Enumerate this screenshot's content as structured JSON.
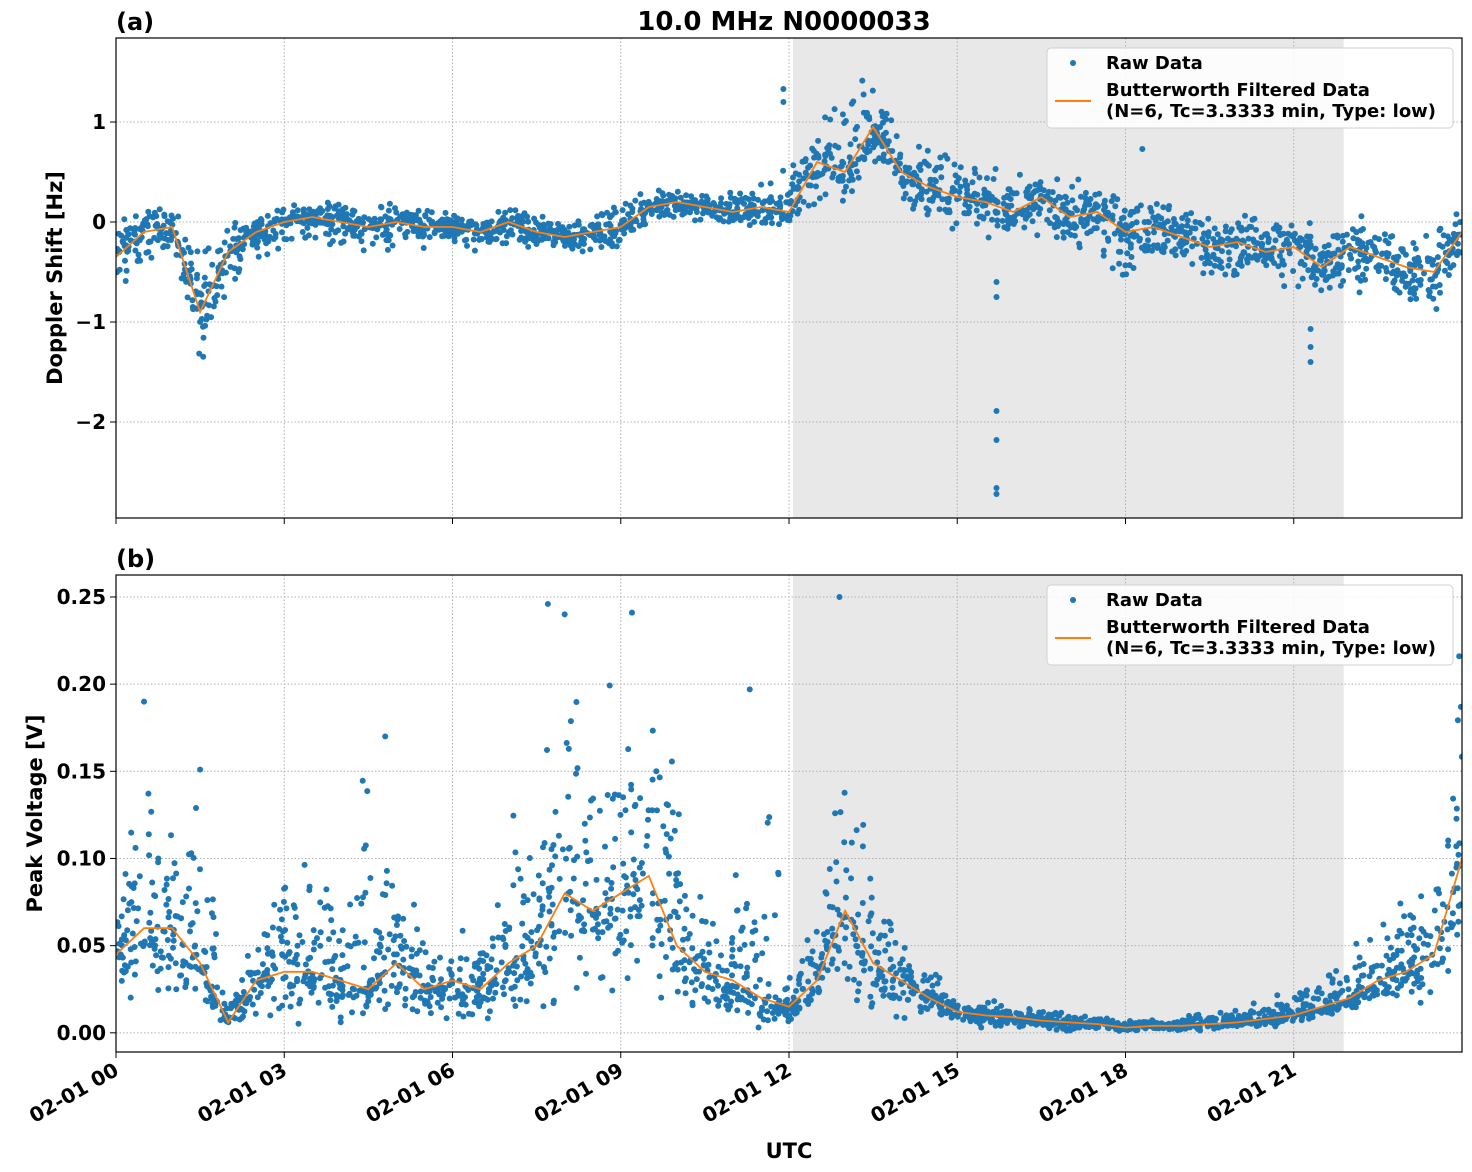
{
  "figure_title": "10.0 MHz N0000033",
  "xlabel": "UTC",
  "x_ticks": [
    "02-01 00",
    "02-01 03",
    "02-01 06",
    "02-01 09",
    "02-01 12",
    "02-01 15",
    "02-01 18",
    "02-01 21"
  ],
  "x_tick_hours": [
    0,
    3,
    6,
    9,
    12,
    15,
    18,
    21
  ],
  "xlim_hours": [
    0,
    24
  ],
  "shaded_interval_hours": [
    12.07,
    21.89
  ],
  "colors": {
    "raw": "#1f77b4",
    "filtered": "#ff7f0e",
    "shade": "#e8e8e8"
  },
  "legend": {
    "raw": "Raw Data",
    "filtered_line1": "Butterworth Filtered Data",
    "filtered_line2": "(N=6, Tc=3.3333 min, Type: low)",
    "placement": "top-right"
  },
  "chart_data": [
    {
      "type": "scatter",
      "panel_label": "(a)",
      "ylabel": "Doppler Shift [Hz]",
      "ylim": [
        -2.96,
        1.84
      ],
      "y_ticks": [
        1,
        0,
        -1,
        -2
      ],
      "y_tick_labels": [
        "1",
        "0",
        "−1",
        "−2"
      ],
      "grid": true,
      "x_hours": [
        0,
        0.5,
        1,
        1.5,
        2,
        2.5,
        3,
        3.5,
        4,
        4.5,
        5,
        5.5,
        6,
        6.5,
        7,
        7.5,
        8,
        8.5,
        9,
        9.5,
        10,
        10.5,
        11,
        11.5,
        12,
        12.5,
        13,
        13.5,
        14,
        14.5,
        15,
        15.5,
        16,
        16.5,
        17,
        17.5,
        18,
        18.5,
        19,
        19.5,
        20,
        20.5,
        21,
        21.5,
        22,
        22.5,
        23,
        23.5,
        24
      ],
      "filtered": [
        -0.35,
        -0.1,
        -0.05,
        -0.9,
        -0.3,
        -0.1,
        0,
        0.05,
        0,
        -0.05,
        0,
        -0.05,
        -0.05,
        -0.1,
        0,
        -0.1,
        -0.15,
        -0.1,
        -0.05,
        0.15,
        0.2,
        0.15,
        0.1,
        0.15,
        0.1,
        0.6,
        0.5,
        0.95,
        0.5,
        0.35,
        0.25,
        0.2,
        0.1,
        0.25,
        0.05,
        0.1,
        -0.1,
        -0.05,
        -0.15,
        -0.25,
        -0.2,
        -0.3,
        -0.25,
        -0.45,
        -0.25,
        -0.35,
        -0.45,
        -0.5,
        -0.1
      ],
      "raw_min": [
        -0.8,
        -0.5,
        -0.3,
        -1.45,
        -0.8,
        -0.4,
        -0.25,
        -0.2,
        -0.3,
        -0.35,
        -0.25,
        -0.3,
        -0.25,
        -0.35,
        -0.25,
        -0.3,
        -0.35,
        -0.35,
        -0.3,
        -0.05,
        0.0,
        -0.05,
        -0.1,
        -0.05,
        -0.1,
        0.1,
        0.1,
        0.5,
        0.1,
        0.0,
        -0.1,
        -0.15,
        -0.3,
        -0.15,
        -0.35,
        -0.4,
        -0.55,
        -0.45,
        -0.5,
        -0.65,
        -0.6,
        -0.6,
        -0.7,
        -0.85,
        -0.7,
        -0.8,
        -0.95,
        -1.05,
        -0.6
      ],
      "raw_max": [
        0.1,
        0.15,
        0.15,
        -0.2,
        0.05,
        0.1,
        0.2,
        0.2,
        0.2,
        0.15,
        0.2,
        0.15,
        0.15,
        0.1,
        0.2,
        0.1,
        0.05,
        0.1,
        0.2,
        0.35,
        0.35,
        0.3,
        0.3,
        0.4,
        0.6,
        1.0,
        1.3,
        1.6,
        1.2,
        0.9,
        0.7,
        0.6,
        0.5,
        0.6,
        0.45,
        0.4,
        0.3,
        0.35,
        0.2,
        0.1,
        0.15,
        0.05,
        0.1,
        0.0,
        0.1,
        0.05,
        -0.05,
        -0.1,
        0.15
      ],
      "outliers": [
        [
          15.7,
          -2.72
        ],
        [
          15.7,
          -2.66
        ],
        [
          15.7,
          -2.18
        ],
        [
          15.7,
          -1.89
        ],
        [
          15.7,
          -0.75
        ],
        [
          15.7,
          -0.6
        ],
        [
          21.3,
          -1.07
        ],
        [
          21.3,
          -1.25
        ],
        [
          21.3,
          -1.4
        ],
        [
          11.9,
          1.33
        ],
        [
          11.9,
          1.2
        ],
        [
          18.3,
          0.73
        ]
      ]
    },
    {
      "type": "scatter",
      "panel_label": "(b)",
      "ylabel": "Peak Voltage [V]",
      "ylim": [
        -0.011,
        0.2626
      ],
      "y_ticks": [
        0.25,
        0.2,
        0.15,
        0.1,
        0.05,
        0.0
      ],
      "y_tick_labels": [
        "0.25",
        "0.20",
        "0.15",
        "0.10",
        "0.05",
        "0.00"
      ],
      "grid": true,
      "x_hours": [
        0,
        0.5,
        1,
        1.5,
        2,
        2.5,
        3,
        3.5,
        4,
        4.5,
        5,
        5.5,
        6,
        6.5,
        7,
        7.5,
        8,
        8.5,
        9,
        9.5,
        10,
        10.5,
        11,
        11.5,
        12,
        12.5,
        13,
        13.5,
        14,
        14.5,
        15,
        15.5,
        16,
        16.5,
        17,
        17.5,
        18,
        18.5,
        19,
        19.5,
        20,
        20.5,
        21,
        21.5,
        22,
        22.5,
        23,
        23.5,
        24
      ],
      "filtered": [
        0.045,
        0.06,
        0.06,
        0.04,
        0.006,
        0.03,
        0.035,
        0.035,
        0.03,
        0.025,
        0.04,
        0.025,
        0.03,
        0.025,
        0.04,
        0.05,
        0.08,
        0.07,
        0.08,
        0.09,
        0.05,
        0.035,
        0.03,
        0.02,
        0.015,
        0.03,
        0.07,
        0.04,
        0.03,
        0.02,
        0.012,
        0.01,
        0.009,
        0.007,
        0.006,
        0.005,
        0.003,
        0.004,
        0.004,
        0.005,
        0.006,
        0.008,
        0.01,
        0.015,
        0.02,
        0.03,
        0.035,
        0.045,
        0.1
      ],
      "raw_min": [
        0.015,
        0.015,
        0.01,
        0.01,
        0.003,
        0.005,
        0.005,
        0.005,
        0.005,
        0.005,
        0.005,
        0.005,
        0.003,
        0.003,
        0.005,
        0.005,
        0.01,
        0.015,
        0.02,
        0.02,
        0.01,
        0.005,
        0.003,
        0.003,
        0.003,
        0.005,
        0.01,
        0.008,
        0.008,
        0.005,
        0.003,
        0.002,
        0.002,
        0.002,
        0.001,
        0.001,
        0.0,
        0.001,
        0.001,
        0.001,
        0.002,
        0.003,
        0.004,
        0.006,
        0.008,
        0.01,
        0.012,
        0.015,
        0.03
      ],
      "raw_max": [
        0.08,
        0.18,
        0.13,
        0.15,
        0.02,
        0.06,
        0.1,
        0.1,
        0.09,
        0.17,
        0.08,
        0.07,
        0.06,
        0.06,
        0.13,
        0.12,
        0.24,
        0.2,
        0.22,
        0.24,
        0.15,
        0.09,
        0.08,
        0.19,
        0.04,
        0.08,
        0.25,
        0.09,
        0.06,
        0.04,
        0.02,
        0.02,
        0.015,
        0.015,
        0.012,
        0.01,
        0.008,
        0.008,
        0.01,
        0.012,
        0.015,
        0.02,
        0.025,
        0.04,
        0.05,
        0.06,
        0.08,
        0.1,
        0.22
      ],
      "outliers": [
        [
          0.5,
          0.19
        ],
        [
          7.7,
          0.246
        ],
        [
          8.0,
          0.24
        ],
        [
          9.2,
          0.241
        ],
        [
          12.9,
          0.25
        ],
        [
          11.3,
          0.197
        ],
        [
          4.8,
          0.17
        ],
        [
          1.5,
          0.151
        ],
        [
          23.95,
          0.216
        ]
      ]
    }
  ]
}
